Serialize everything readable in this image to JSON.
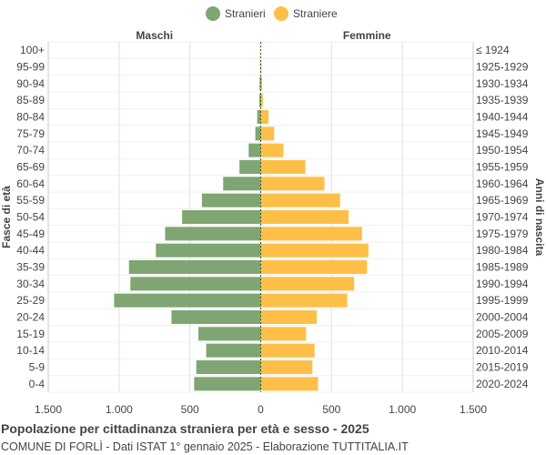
{
  "chart_data": {
    "type": "bar",
    "orientation": "horizontal-population-pyramid",
    "legend": {
      "placement": "top-center",
      "items": [
        "Stranieri",
        "Straniere"
      ]
    },
    "side_labels": {
      "left": "Maschi",
      "right": "Femmine"
    },
    "ylabel_left": "Fasce di età",
    "ylabel_right": "Anni di nascita",
    "x_ticks": [
      "1.500",
      "1.000",
      "500",
      "0",
      "500",
      "1.000",
      "1.500"
    ],
    "xlim": [
      -1500,
      1500
    ],
    "grid": true,
    "colors": {
      "male": "#7fa672",
      "female": "#fdbf47",
      "center_line": "#335533",
      "grid": "#e0e0e0"
    },
    "categories": [
      "100+",
      "95-99",
      "90-94",
      "85-89",
      "80-84",
      "75-79",
      "70-74",
      "65-69",
      "60-64",
      "55-59",
      "50-54",
      "45-49",
      "40-44",
      "35-39",
      "30-34",
      "25-29",
      "20-24",
      "15-19",
      "10-14",
      "5-9",
      "0-4"
    ],
    "birth_years": [
      "≤ 1924",
      "1925-1929",
      "1930-1934",
      "1935-1939",
      "1940-1944",
      "1945-1949",
      "1950-1954",
      "1955-1959",
      "1960-1964",
      "1965-1969",
      "1970-1974",
      "1975-1979",
      "1980-1984",
      "1985-1989",
      "1990-1994",
      "1995-1999",
      "2000-2004",
      "2005-2009",
      "2010-2014",
      "2015-2019",
      "2020-2024"
    ],
    "series": [
      {
        "name": "Stranieri",
        "values": [
          0,
          2,
          8,
          10,
          25,
          38,
          85,
          150,
          265,
          415,
          555,
          675,
          740,
          930,
          920,
          1035,
          630,
          440,
          385,
          455,
          470
        ]
      },
      {
        "name": "Straniere",
        "values": [
          3,
          5,
          10,
          15,
          55,
          95,
          160,
          315,
          450,
          560,
          620,
          715,
          760,
          750,
          660,
          610,
          395,
          320,
          380,
          365,
          405
        ]
      }
    ]
  },
  "footer": {
    "title": "Popolazione per cittadinanza straniera per età e sesso - 2025",
    "subtitle": "COMUNE DI FORLÌ - Dati ISTAT 1° gennaio 2025 - Elaborazione TUTTITALIA.IT"
  }
}
